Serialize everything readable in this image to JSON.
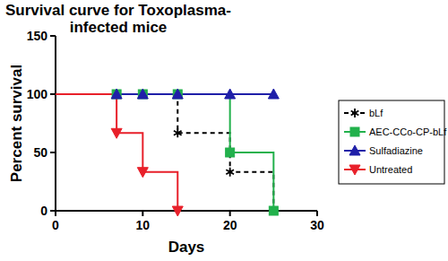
{
  "chart_data": {
    "type": "step",
    "title": "Survival curve for Toxoplasma-infected mice",
    "x_label": "Days",
    "y_label": "Percent survival",
    "x": [
      0,
      7,
      10,
      14,
      20,
      25
    ],
    "series": [
      {
        "name": "bLf",
        "color": "#000000",
        "marker": "star",
        "line_style": "dashed",
        "values": [
          100,
          100,
          100,
          66.7,
          33.3,
          0
        ]
      },
      {
        "name": "AEC-CCo-CP-bLf",
        "color": "#22b14c",
        "marker": "square",
        "line_style": "solid",
        "values": [
          100,
          100,
          100,
          100,
          50,
          0
        ]
      },
      {
        "name": "Sulfadiazine",
        "color": "#1f1fa8",
        "marker": "triangle-up",
        "line_style": "solid",
        "values": [
          100,
          100,
          100,
          100,
          100,
          100
        ]
      },
      {
        "name": "Untreated",
        "color": "#e8202a",
        "marker": "triangle-down",
        "line_style": "solid",
        "values": [
          100,
          66.7,
          33.3,
          0,
          null,
          null
        ]
      }
    ],
    "xlim": [
      0,
      30
    ],
    "xticks": [
      0,
      10,
      20,
      30
    ],
    "ylim": [
      0,
      150
    ],
    "yticks": [
      0,
      50,
      100,
      150
    ],
    "grid": false,
    "legend": "right"
  }
}
